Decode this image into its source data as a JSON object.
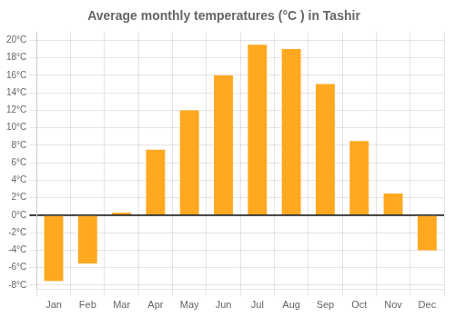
{
  "chart_data": {
    "type": "bar",
    "title": "Average monthly temperatures (°C ) in Tashir",
    "categories": [
      "Jan",
      "Feb",
      "Mar",
      "Apr",
      "May",
      "Jun",
      "Jul",
      "Aug",
      "Sep",
      "Oct",
      "Nov",
      "Dec"
    ],
    "values": [
      -7.5,
      -5.5,
      0.3,
      7.5,
      12,
      16,
      19.5,
      19,
      15,
      8.5,
      2.5,
      -4
    ],
    "color": "#FFA820",
    "ylim": [
      -8.5,
      21
    ],
    "yticks": [
      {
        "value": -8,
        "label": "-8°C"
      },
      {
        "value": -6,
        "label": "-6°C"
      },
      {
        "value": -4,
        "label": "-4°C"
      },
      {
        "value": -2,
        "label": "-2°C"
      },
      {
        "value": 0,
        "label": "0°C"
      },
      {
        "value": 2,
        "label": "2°C"
      },
      {
        "value": 4,
        "label": "4°C"
      },
      {
        "value": 6,
        "label": "6°C"
      },
      {
        "value": 8,
        "label": "8°C"
      },
      {
        "value": 10,
        "label": "10°C"
      },
      {
        "value": 12,
        "label": "12°C"
      },
      {
        "value": 14,
        "label": "14°C"
      },
      {
        "value": 16,
        "label": "16°C"
      },
      {
        "value": 18,
        "label": "18°C"
      },
      {
        "value": 20,
        "label": "20°C"
      }
    ],
    "grid": true
  }
}
